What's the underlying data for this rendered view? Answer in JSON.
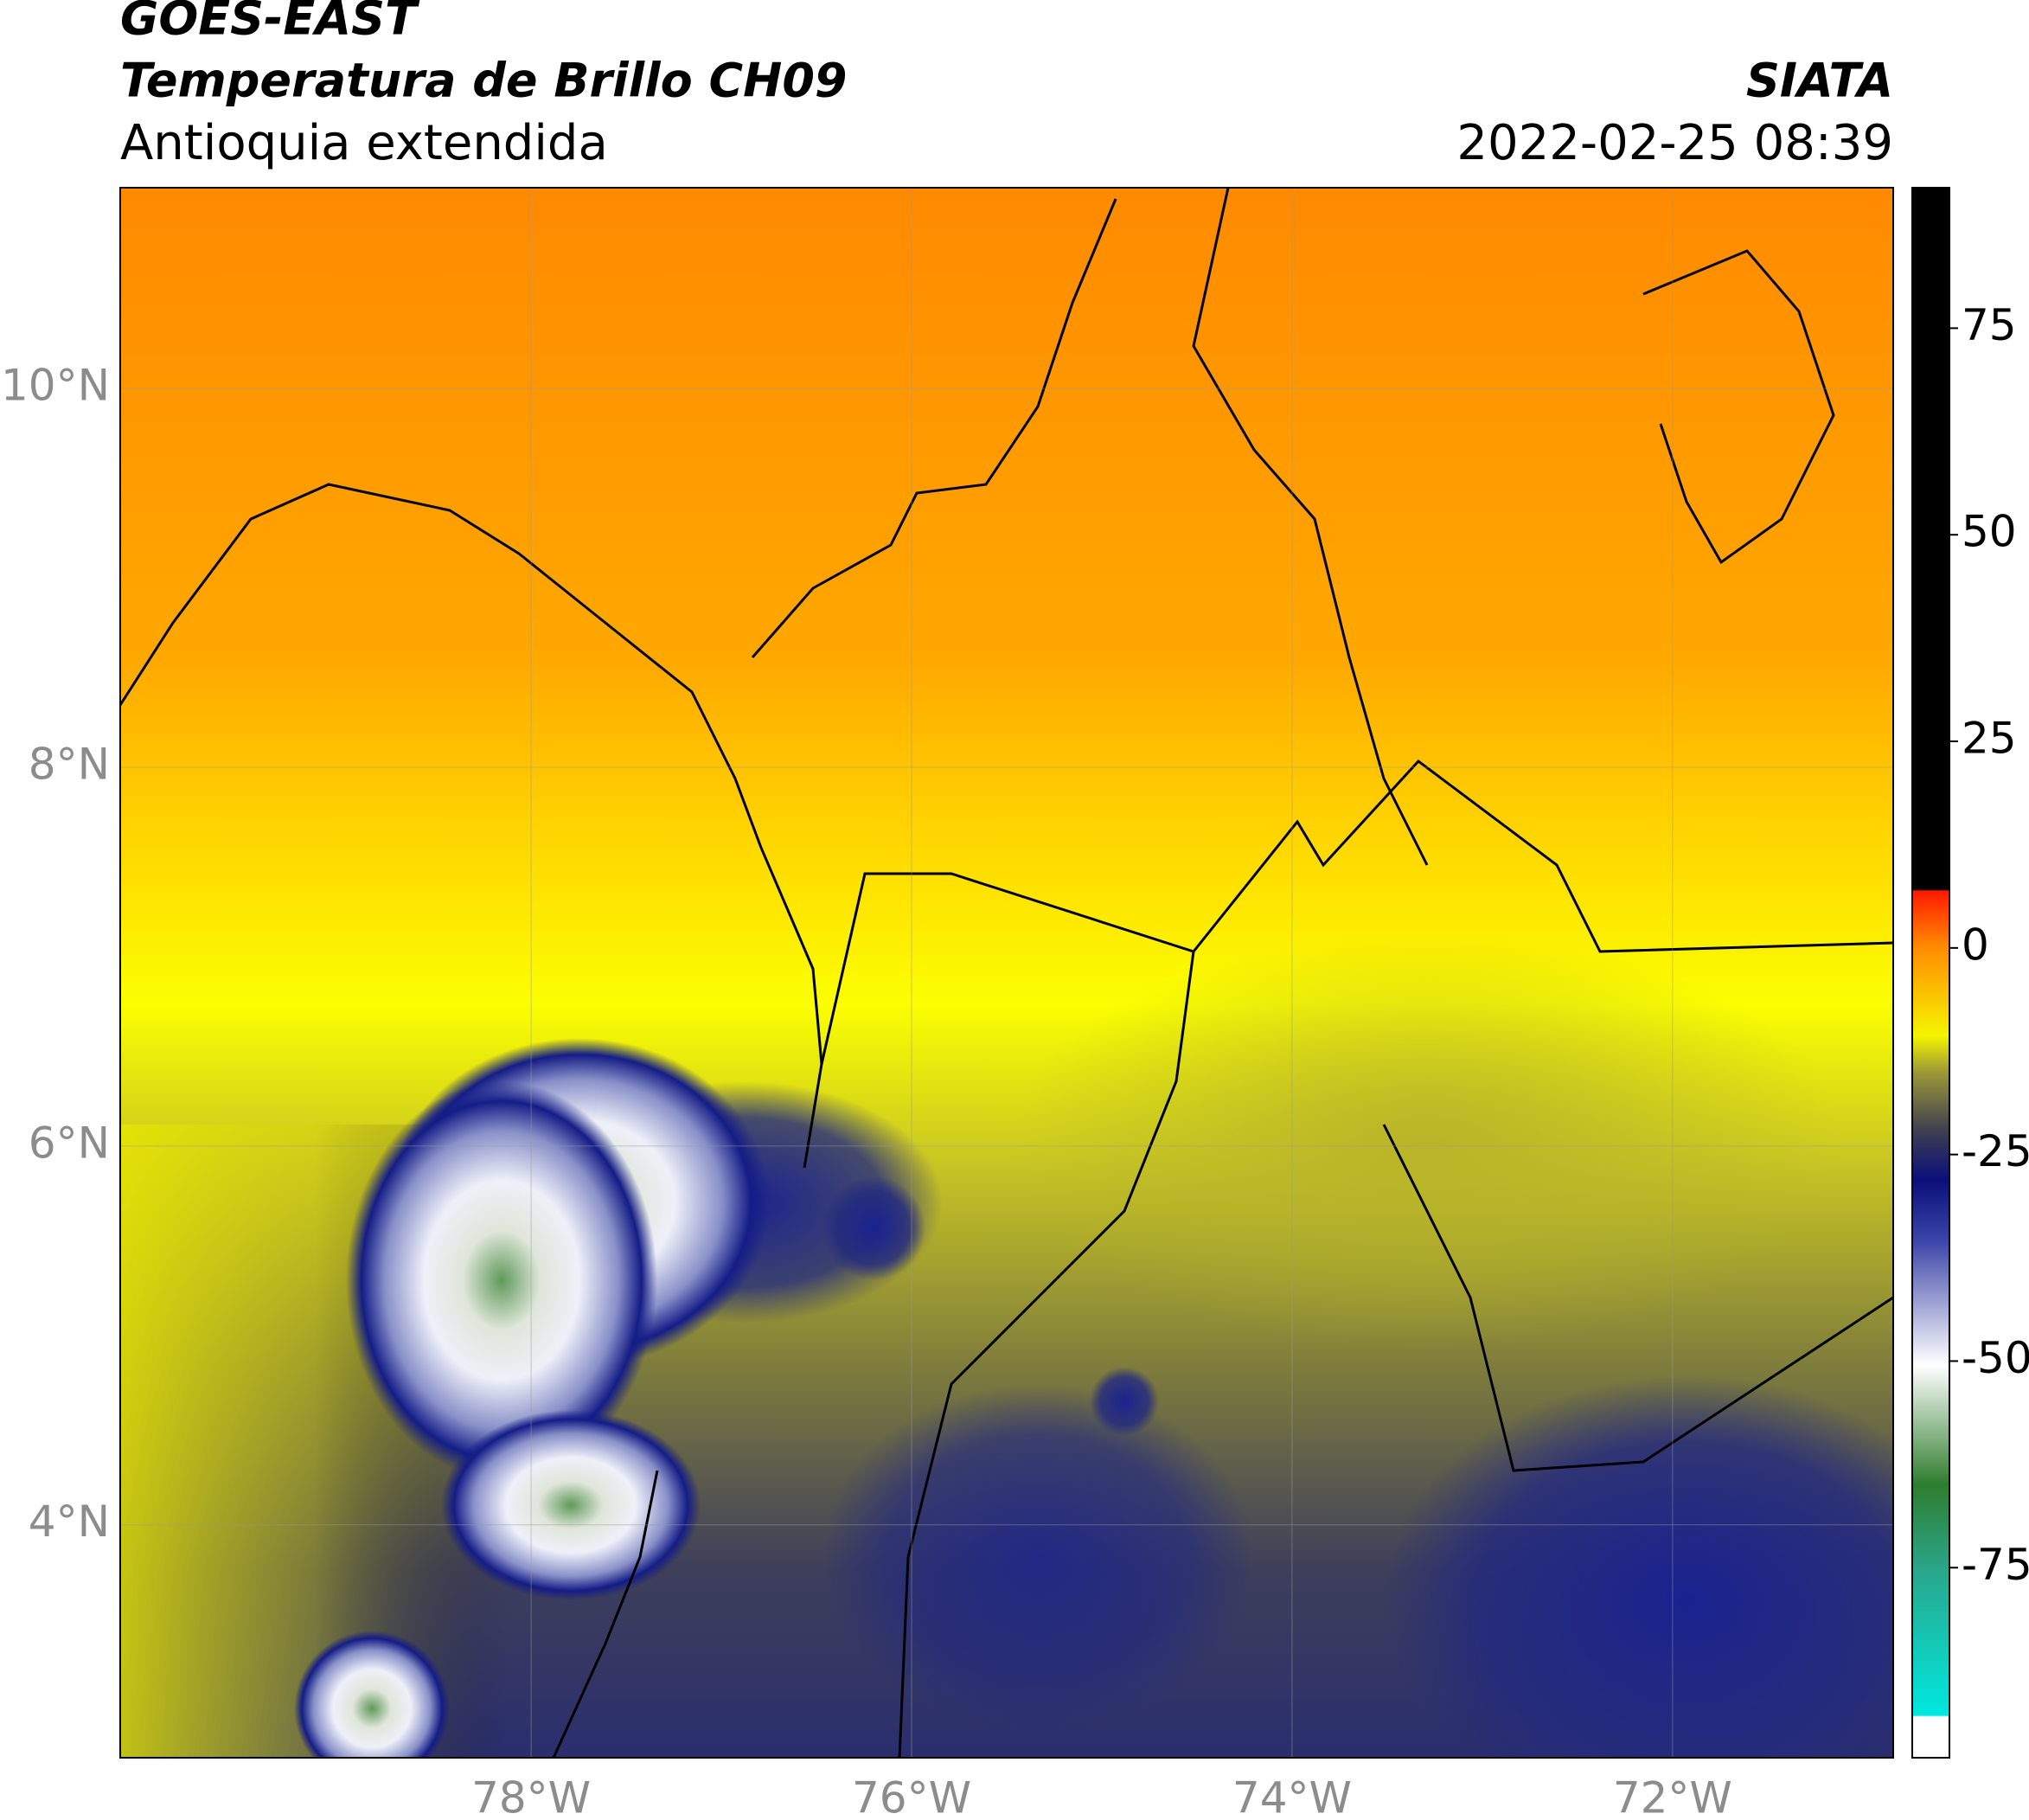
{
  "chart_data": {
    "type": "map",
    "title": "GOES-EAST",
    "subtitle": "Temperatura de Brillo CH09",
    "region": "Antioquia extendida",
    "source": "SIATA",
    "timestamp": "2022-02-25 08:39",
    "xlim": [
      -80.16,
      -70.84
    ],
    "ylim": [
      2.77,
      11.06
    ],
    "xticks": [
      {
        "value": -78,
        "label": "78°W"
      },
      {
        "value": -76,
        "label": "76°W"
      },
      {
        "value": -74,
        "label": "74°W"
      },
      {
        "value": -72,
        "label": "72°W"
      }
    ],
    "yticks": [
      {
        "value": 4,
        "label": "4°N"
      },
      {
        "value": 6,
        "label": "6°N"
      },
      {
        "value": 8,
        "label": "8°N"
      },
      {
        "value": 10,
        "label": "10°N"
      }
    ],
    "grid": true,
    "clim": [
      -98,
      92
    ],
    "cticks": [
      75,
      50,
      25,
      0,
      -25,
      -50,
      -75
    ]
  }
}
